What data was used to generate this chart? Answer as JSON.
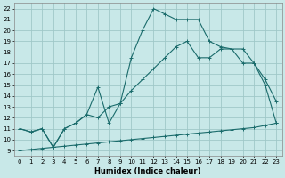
{
  "xlabel": "Humidex (Indice chaleur)",
  "bg_color": "#c8e8e8",
  "grid_color": "#a0c8c8",
  "line_color": "#1a6b6b",
  "xlim": [
    -0.5,
    23.5
  ],
  "ylim": [
    8.5,
    22.5
  ],
  "xticks": [
    0,
    1,
    2,
    3,
    4,
    5,
    6,
    7,
    8,
    9,
    10,
    11,
    12,
    13,
    14,
    15,
    16,
    17,
    18,
    19,
    20,
    21,
    22,
    23
  ],
  "yticks": [
    9,
    10,
    11,
    12,
    13,
    14,
    15,
    16,
    17,
    18,
    19,
    20,
    21,
    22
  ],
  "curve1_x": [
    0,
    1,
    2,
    3,
    4,
    5,
    6,
    7,
    8,
    9,
    10,
    11,
    12,
    13,
    14,
    15,
    16,
    17,
    18,
    19,
    20,
    21,
    22,
    23
  ],
  "curve1_y": [
    9.0,
    9.1,
    9.2,
    9.3,
    9.4,
    9.5,
    9.6,
    9.7,
    9.8,
    9.9,
    10.0,
    10.1,
    10.2,
    10.3,
    10.4,
    10.5,
    10.6,
    10.7,
    10.8,
    10.9,
    11.0,
    11.1,
    11.3,
    11.5
  ],
  "curve2_x": [
    0,
    1,
    2,
    3,
    4,
    5,
    6,
    7,
    8,
    9,
    10,
    11,
    12,
    13,
    14,
    15,
    16,
    17,
    18,
    19,
    20,
    21,
    22,
    23
  ],
  "curve2_y": [
    11.0,
    10.7,
    11.0,
    9.3,
    11.0,
    11.5,
    12.3,
    12.0,
    13.0,
    13.3,
    14.5,
    15.5,
    16.5,
    17.5,
    18.5,
    19.0,
    17.5,
    17.5,
    18.3,
    18.3,
    17.0,
    17.0,
    15.0,
    11.5
  ],
  "curve3_x": [
    0,
    1,
    2,
    3,
    4,
    5,
    6,
    7,
    8,
    9,
    10,
    11,
    12,
    13,
    14,
    15,
    16,
    17,
    18,
    19,
    20,
    21,
    22,
    23
  ],
  "curve3_y": [
    11.0,
    10.7,
    11.0,
    9.3,
    11.0,
    11.5,
    12.3,
    14.8,
    11.5,
    13.3,
    17.5,
    20.0,
    22.0,
    21.5,
    21.0,
    21.0,
    21.0,
    19.0,
    18.5,
    18.3,
    18.3,
    17.0,
    15.5,
    13.5
  ]
}
